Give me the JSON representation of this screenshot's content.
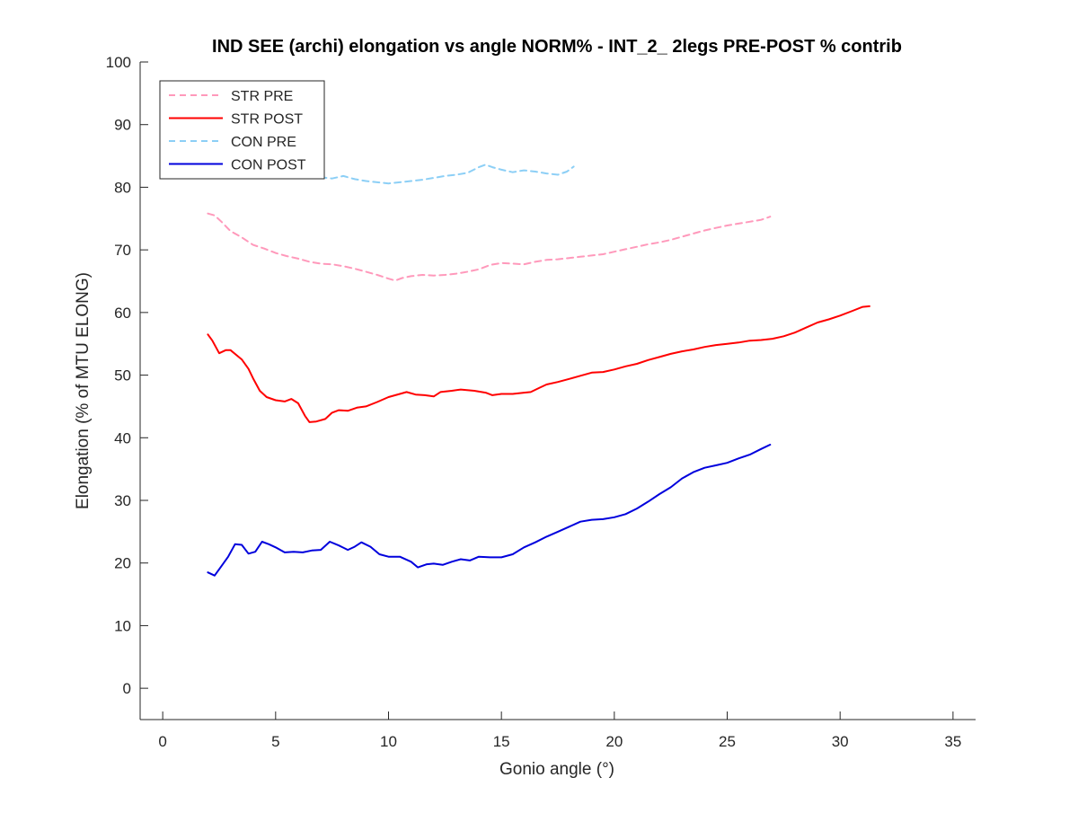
{
  "chart_data": {
    "type": "line",
    "title": "IND SEE (archi) elongation vs angle NORM% - INT_2_ 2legs PRE-POST % contrib",
    "xlabel": "Gonio angle (°)",
    "ylabel": "Elongation (% of MTU ELONG)",
    "xlim": [
      -1,
      36
    ],
    "ylim": [
      -5,
      100
    ],
    "xticks": [
      0,
      5,
      10,
      15,
      20,
      25,
      30,
      35
    ],
    "yticks": [
      0,
      10,
      20,
      30,
      40,
      50,
      60,
      70,
      80,
      90,
      100
    ],
    "grid": false,
    "legend_position": "top-left",
    "series": [
      {
        "name": "STR PRE",
        "color": "#ff99bb",
        "dash": "dashed",
        "points": [
          [
            2.0,
            75.8
          ],
          [
            2.3,
            75.5
          ],
          [
            2.6,
            74.5
          ],
          [
            3.0,
            73.0
          ],
          [
            3.5,
            72.0
          ],
          [
            4.0,
            70.8
          ],
          [
            4.5,
            70.2
          ],
          [
            5.0,
            69.5
          ],
          [
            5.5,
            69.0
          ],
          [
            6.0,
            68.6
          ],
          [
            6.5,
            68.1
          ],
          [
            7.0,
            67.8
          ],
          [
            7.5,
            67.7
          ],
          [
            8.0,
            67.4
          ],
          [
            8.5,
            67.0
          ],
          [
            9.0,
            66.5
          ],
          [
            9.5,
            66.0
          ],
          [
            10.0,
            65.4
          ],
          [
            10.3,
            65.1
          ],
          [
            10.6,
            65.5
          ],
          [
            11.0,
            65.8
          ],
          [
            11.5,
            66.0
          ],
          [
            12.0,
            65.9
          ],
          [
            12.5,
            66.0
          ],
          [
            13.0,
            66.2
          ],
          [
            13.5,
            66.5
          ],
          [
            14.0,
            66.9
          ],
          [
            14.5,
            67.6
          ],
          [
            15.0,
            67.9
          ],
          [
            15.5,
            67.8
          ],
          [
            16.0,
            67.7
          ],
          [
            16.5,
            68.1
          ],
          [
            17.0,
            68.4
          ],
          [
            17.5,
            68.5
          ],
          [
            18.0,
            68.7
          ],
          [
            18.5,
            68.9
          ],
          [
            19.0,
            69.1
          ],
          [
            19.5,
            69.3
          ],
          [
            20.0,
            69.7
          ],
          [
            20.5,
            70.1
          ],
          [
            21.0,
            70.5
          ],
          [
            21.5,
            70.9
          ],
          [
            22.0,
            71.2
          ],
          [
            22.5,
            71.6
          ],
          [
            23.0,
            72.1
          ],
          [
            23.5,
            72.6
          ],
          [
            24.0,
            73.1
          ],
          [
            24.5,
            73.5
          ],
          [
            25.0,
            73.9
          ],
          [
            25.5,
            74.2
          ],
          [
            26.0,
            74.5
          ],
          [
            26.5,
            74.8
          ],
          [
            26.9,
            75.3
          ]
        ]
      },
      {
        "name": "STR POST",
        "color": "#ff0000",
        "dash": "solid",
        "points": [
          [
            2.0,
            56.5
          ],
          [
            2.2,
            55.5
          ],
          [
            2.5,
            53.5
          ],
          [
            2.8,
            54.0
          ],
          [
            3.0,
            54.0
          ],
          [
            3.5,
            52.5
          ],
          [
            3.8,
            51.0
          ],
          [
            4.0,
            49.5
          ],
          [
            4.3,
            47.5
          ],
          [
            4.6,
            46.5
          ],
          [
            5.0,
            46.0
          ],
          [
            5.4,
            45.8
          ],
          [
            5.7,
            46.2
          ],
          [
            6.0,
            45.5
          ],
          [
            6.3,
            43.5
          ],
          [
            6.5,
            42.5
          ],
          [
            6.8,
            42.6
          ],
          [
            7.2,
            43.0
          ],
          [
            7.5,
            44.0
          ],
          [
            7.8,
            44.4
          ],
          [
            8.2,
            44.3
          ],
          [
            8.6,
            44.8
          ],
          [
            9.0,
            45.0
          ],
          [
            9.5,
            45.7
          ],
          [
            10.0,
            46.5
          ],
          [
            10.5,
            47.0
          ],
          [
            10.8,
            47.3
          ],
          [
            11.2,
            46.9
          ],
          [
            11.6,
            46.8
          ],
          [
            12.0,
            46.6
          ],
          [
            12.3,
            47.3
          ],
          [
            12.8,
            47.5
          ],
          [
            13.2,
            47.7
          ],
          [
            13.8,
            47.5
          ],
          [
            14.3,
            47.2
          ],
          [
            14.6,
            46.8
          ],
          [
            15.0,
            47.0
          ],
          [
            15.5,
            47.0
          ],
          [
            16.0,
            47.2
          ],
          [
            16.3,
            47.3
          ],
          [
            16.7,
            48.0
          ],
          [
            17.0,
            48.5
          ],
          [
            17.5,
            48.9
          ],
          [
            18.0,
            49.4
          ],
          [
            18.5,
            49.9
          ],
          [
            19.0,
            50.4
          ],
          [
            19.5,
            50.5
          ],
          [
            20.0,
            50.9
          ],
          [
            20.5,
            51.4
          ],
          [
            21.0,
            51.8
          ],
          [
            21.5,
            52.4
          ],
          [
            22.0,
            52.9
          ],
          [
            22.5,
            53.4
          ],
          [
            23.0,
            53.8
          ],
          [
            23.5,
            54.1
          ],
          [
            24.0,
            54.5
          ],
          [
            24.5,
            54.8
          ],
          [
            25.0,
            55.0
          ],
          [
            25.5,
            55.2
          ],
          [
            26.0,
            55.5
          ],
          [
            26.5,
            55.6
          ],
          [
            27.0,
            55.8
          ],
          [
            27.5,
            56.2
          ],
          [
            28.0,
            56.8
          ],
          [
            28.5,
            57.6
          ],
          [
            29.0,
            58.4
          ],
          [
            29.5,
            58.9
          ],
          [
            30.0,
            59.5
          ],
          [
            30.5,
            60.2
          ],
          [
            31.0,
            60.9
          ],
          [
            31.3,
            61.0
          ]
        ]
      },
      {
        "name": "CON PRE",
        "color": "#8ccff6",
        "dash": "dashed",
        "points": [
          [
            6.5,
            81.8
          ],
          [
            7.0,
            81.6
          ],
          [
            7.5,
            81.4
          ],
          [
            8.0,
            81.8
          ],
          [
            8.5,
            81.3
          ],
          [
            9.0,
            81.0
          ],
          [
            9.5,
            80.8
          ],
          [
            10.0,
            80.6
          ],
          [
            10.5,
            80.8
          ],
          [
            11.0,
            81.0
          ],
          [
            11.5,
            81.2
          ],
          [
            12.0,
            81.5
          ],
          [
            12.5,
            81.8
          ],
          [
            13.0,
            82.0
          ],
          [
            13.5,
            82.3
          ],
          [
            14.0,
            83.2
          ],
          [
            14.3,
            83.6
          ],
          [
            14.6,
            83.2
          ],
          [
            15.0,
            82.8
          ],
          [
            15.5,
            82.4
          ],
          [
            16.0,
            82.7
          ],
          [
            16.5,
            82.5
          ],
          [
            17.0,
            82.2
          ],
          [
            17.5,
            82.0
          ],
          [
            17.9,
            82.5
          ],
          [
            18.2,
            83.3
          ]
        ]
      },
      {
        "name": "CON POST",
        "color": "#0000dd",
        "dash": "solid",
        "points": [
          [
            2.0,
            18.5
          ],
          [
            2.3,
            18.0
          ],
          [
            2.6,
            19.5
          ],
          [
            2.9,
            21.0
          ],
          [
            3.2,
            23.0
          ],
          [
            3.5,
            22.9
          ],
          [
            3.8,
            21.5
          ],
          [
            4.1,
            21.8
          ],
          [
            4.4,
            23.4
          ],
          [
            4.7,
            23.0
          ],
          [
            5.0,
            22.5
          ],
          [
            5.4,
            21.7
          ],
          [
            5.8,
            21.8
          ],
          [
            6.2,
            21.7
          ],
          [
            6.6,
            22.0
          ],
          [
            7.0,
            22.1
          ],
          [
            7.4,
            23.4
          ],
          [
            7.8,
            22.8
          ],
          [
            8.2,
            22.1
          ],
          [
            8.5,
            22.6
          ],
          [
            8.8,
            23.3
          ],
          [
            9.2,
            22.6
          ],
          [
            9.6,
            21.4
          ],
          [
            10.0,
            21.0
          ],
          [
            10.5,
            21.0
          ],
          [
            11.0,
            20.2
          ],
          [
            11.3,
            19.3
          ],
          [
            11.7,
            19.8
          ],
          [
            12.0,
            19.9
          ],
          [
            12.4,
            19.7
          ],
          [
            12.8,
            20.2
          ],
          [
            13.2,
            20.6
          ],
          [
            13.6,
            20.4
          ],
          [
            14.0,
            21.0
          ],
          [
            14.5,
            20.9
          ],
          [
            15.0,
            20.9
          ],
          [
            15.5,
            21.4
          ],
          [
            16.0,
            22.5
          ],
          [
            16.5,
            23.3
          ],
          [
            17.0,
            24.2
          ],
          [
            17.5,
            25.0
          ],
          [
            18.0,
            25.8
          ],
          [
            18.5,
            26.6
          ],
          [
            19.0,
            26.9
          ],
          [
            19.5,
            27.0
          ],
          [
            20.0,
            27.3
          ],
          [
            20.5,
            27.8
          ],
          [
            21.0,
            28.7
          ],
          [
            21.5,
            29.8
          ],
          [
            22.0,
            31.0
          ],
          [
            22.5,
            32.1
          ],
          [
            23.0,
            33.5
          ],
          [
            23.5,
            34.5
          ],
          [
            24.0,
            35.2
          ],
          [
            24.5,
            35.6
          ],
          [
            25.0,
            36.0
          ],
          [
            25.5,
            36.7
          ],
          [
            26.0,
            37.3
          ],
          [
            26.5,
            38.2
          ],
          [
            26.9,
            38.9
          ]
        ]
      }
    ]
  }
}
